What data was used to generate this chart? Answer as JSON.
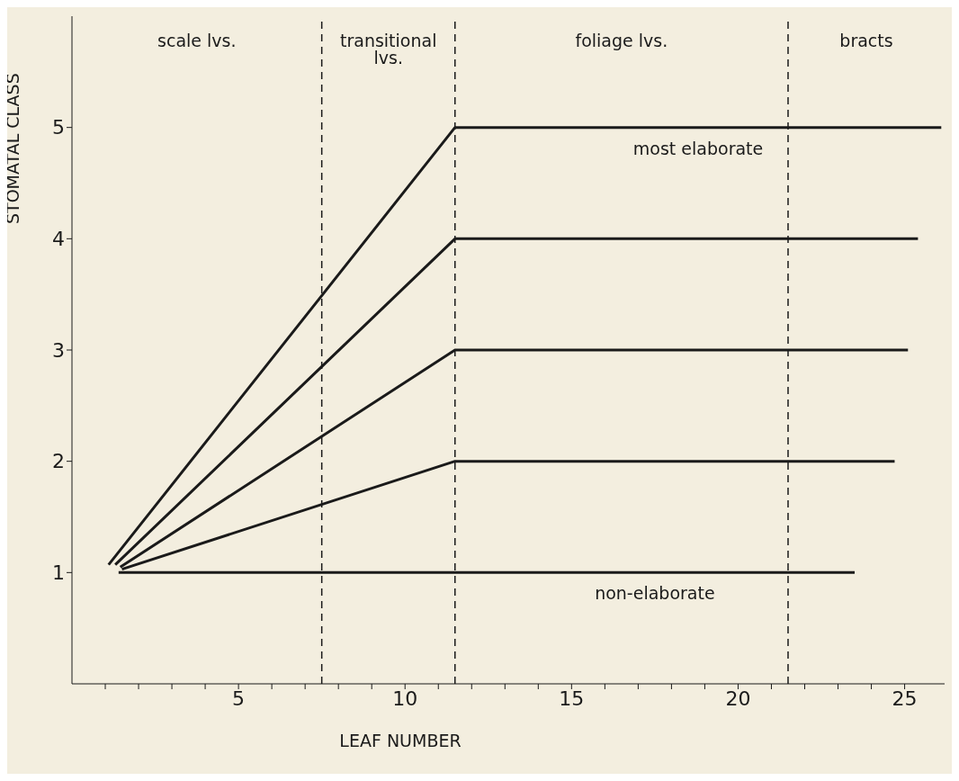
{
  "chart_data": {
    "type": "line",
    "xlabel": "LEAF NUMBER",
    "ylabel": "STOMATAL CLASS",
    "series": [
      {
        "name": "non-elaborate",
        "color": "#1a1a1a",
        "x": [
          1.4,
          11.5,
          23.5
        ],
        "values": [
          1,
          1,
          1
        ]
      },
      {
        "color": "#1a1a1a",
        "x": [
          1.5,
          11.5,
          24.7
        ],
        "values": [
          1.03,
          2,
          2
        ]
      },
      {
        "color": "#1a1a1a",
        "x": [
          1.45,
          11.5,
          25.1
        ],
        "values": [
          1.05,
          3,
          3
        ]
      },
      {
        "color": "#1a1a1a",
        "x": [
          1.3,
          11.5,
          25.4
        ],
        "values": [
          1.07,
          4,
          4
        ]
      },
      {
        "name": "most elaborate",
        "color": "#1a1a1a",
        "x": [
          1.1,
          11.5,
          26.1
        ],
        "values": [
          1.07,
          5,
          5
        ]
      }
    ],
    "xlim": [
      0,
      26.2
    ],
    "ylim": [
      0,
      6
    ],
    "xticks": [
      {
        "value": 1,
        "label": null
      },
      {
        "value": 2,
        "label": null
      },
      {
        "value": 3,
        "label": null
      },
      {
        "value": 4,
        "label": null
      },
      5,
      {
        "value": 6,
        "label": null
      },
      {
        "value": 7,
        "label": null
      },
      {
        "value": 8,
        "label": null
      },
      {
        "value": 9,
        "label": null
      },
      10,
      {
        "value": 11,
        "label": null
      },
      {
        "value": 12,
        "label": null
      },
      {
        "value": 13,
        "label": null
      },
      {
        "value": 14,
        "label": null
      },
      15,
      {
        "value": 16,
        "label": null
      },
      {
        "value": 17,
        "label": null
      },
      {
        "value": 18,
        "label": null
      },
      {
        "value": 19,
        "label": null
      },
      20,
      {
        "value": 21,
        "label": null
      },
      {
        "value": 22,
        "label": null
      },
      {
        "value": 23,
        "label": null
      },
      {
        "value": 24,
        "label": null
      },
      25
    ],
    "yticks": [
      1,
      2,
      3,
      4,
      5
    ],
    "ref_lines": [
      {
        "axis": "x",
        "value": 7.5,
        "line_style": "dashed"
      },
      {
        "axis": "x",
        "value": 11.5,
        "line_style": "dashed"
      },
      {
        "axis": "x",
        "value": 21.5,
        "line_style": "dashed"
      }
    ],
    "annotations": [
      "scale lvs.",
      "transitional\nlvs.",
      "foliage lvs.",
      "bracts"
    ],
    "grid": false,
    "marker": "none",
    "line_style": "solid"
  }
}
